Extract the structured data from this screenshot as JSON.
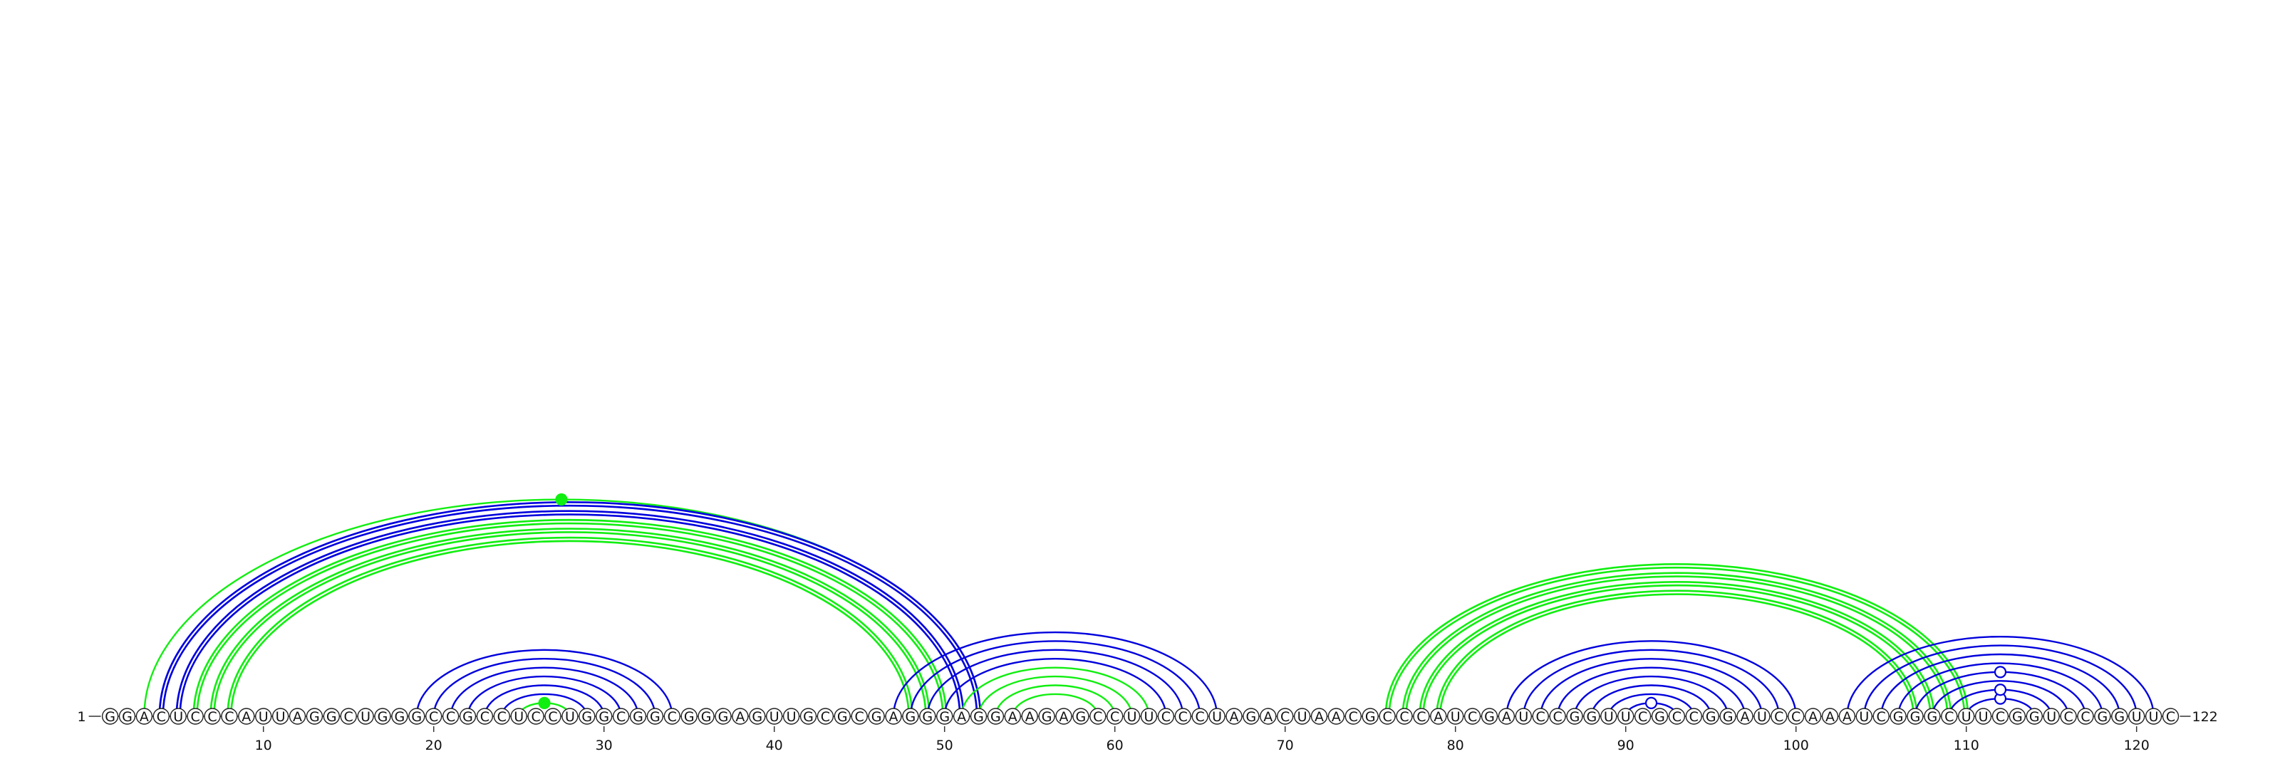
{
  "sequence": "GGACUCCCAUUAGGCUGGGCCGCCUCCUGGCGGCGGGAGUUGCGCGAGGGAGGAAGAGCCUUCCCUAGACUAACGCCCAUCGAUCCGGUUCGCCGGAUCCAAAUCGGGCUUCGGUCCGGUUC",
  "start_label": "1",
  "end_label": "122",
  "tick_labels": [
    "10",
    "20",
    "30",
    "40",
    "50",
    "60",
    "70",
    "80",
    "90",
    "100",
    "110",
    "120"
  ],
  "tick_positions": [
    10,
    20,
    30,
    40,
    50,
    60,
    70,
    80,
    90,
    100,
    110,
    120
  ],
  "colors": {
    "blue": "#0000dd",
    "green": "#11ee11",
    "outline": "#222222",
    "baseline": "#333333"
  },
  "arcs": [
    {
      "i": 3,
      "j": 52,
      "color": "green",
      "double": false
    },
    {
      "i": 4,
      "j": 52,
      "color": "blue",
      "double": true
    },
    {
      "i": 5,
      "j": 51,
      "color": "blue",
      "double": true
    },
    {
      "i": 6,
      "j": 50,
      "color": "green",
      "double": true
    },
    {
      "i": 7,
      "j": 49,
      "color": "green",
      "double": true
    },
    {
      "i": 8,
      "j": 48,
      "color": "green",
      "double": true
    },
    {
      "i": 19,
      "j": 34,
      "color": "blue",
      "double": false
    },
    {
      "i": 20,
      "j": 33,
      "color": "blue",
      "double": false
    },
    {
      "i": 21,
      "j": 32,
      "color": "blue",
      "double": false
    },
    {
      "i": 22,
      "j": 31,
      "color": "blue",
      "double": false
    },
    {
      "i": 23,
      "j": 30,
      "color": "blue",
      "double": false
    },
    {
      "i": 24,
      "j": 29,
      "color": "blue",
      "double": false
    },
    {
      "i": 25,
      "j": 28,
      "color": "green",
      "double": false
    },
    {
      "i": 47,
      "j": 66,
      "color": "blue",
      "double": false
    },
    {
      "i": 48,
      "j": 65,
      "color": "blue",
      "double": false
    },
    {
      "i": 49,
      "j": 64,
      "color": "blue",
      "double": false
    },
    {
      "i": 50,
      "j": 63,
      "color": "blue",
      "double": false
    },
    {
      "i": 51,
      "j": 62,
      "color": "green",
      "double": false
    },
    {
      "i": 52,
      "j": 61,
      "color": "green",
      "double": false
    },
    {
      "i": 53,
      "j": 60,
      "color": "green",
      "double": false
    },
    {
      "i": 54,
      "j": 59,
      "color": "green",
      "double": false
    },
    {
      "i": 76,
      "j": 110,
      "color": "green",
      "double": true
    },
    {
      "i": 77,
      "j": 109,
      "color": "green",
      "double": true
    },
    {
      "i": 78,
      "j": 108,
      "color": "green",
      "double": true
    },
    {
      "i": 79,
      "j": 107,
      "color": "green",
      "double": true
    },
    {
      "i": 83,
      "j": 100,
      "color": "blue",
      "double": false
    },
    {
      "i": 84,
      "j": 99,
      "color": "blue",
      "double": false
    },
    {
      "i": 85,
      "j": 98,
      "color": "blue",
      "double": false
    },
    {
      "i": 86,
      "j": 97,
      "color": "blue",
      "double": false
    },
    {
      "i": 87,
      "j": 96,
      "color": "blue",
      "double": false
    },
    {
      "i": 88,
      "j": 95,
      "color": "blue",
      "double": false
    },
    {
      "i": 89,
      "j": 94,
      "color": "blue",
      "double": false
    },
    {
      "i": 90,
      "j": 93,
      "color": "blue",
      "double": false
    },
    {
      "i": 103,
      "j": 121,
      "color": "blue",
      "double": false
    },
    {
      "i": 104,
      "j": 120,
      "color": "blue",
      "double": false
    },
    {
      "i": 105,
      "j": 119,
      "color": "blue",
      "double": false
    },
    {
      "i": 106,
      "j": 118,
      "color": "blue",
      "double": false
    },
    {
      "i": 107,
      "j": 117,
      "color": "blue",
      "double": false
    },
    {
      "i": 108,
      "j": 116,
      "color": "blue",
      "double": false
    },
    {
      "i": 109,
      "j": 115,
      "color": "blue",
      "double": false
    },
    {
      "i": 110,
      "j": 114,
      "color": "blue",
      "double": false
    }
  ],
  "markers": [
    {
      "i": 3,
      "j": 52,
      "style": "filled",
      "color": "green"
    },
    {
      "i": 25,
      "j": 28,
      "style": "filled",
      "color": "green"
    },
    {
      "i": 90,
      "j": 93,
      "style": "open",
      "color": "blue"
    },
    {
      "i": 110,
      "j": 114,
      "style": "open",
      "color": "blue"
    },
    {
      "i": 109,
      "j": 115,
      "style": "open",
      "color": "blue"
    },
    {
      "i": 107,
      "j": 117,
      "style": "open",
      "color": "blue"
    }
  ]
}
